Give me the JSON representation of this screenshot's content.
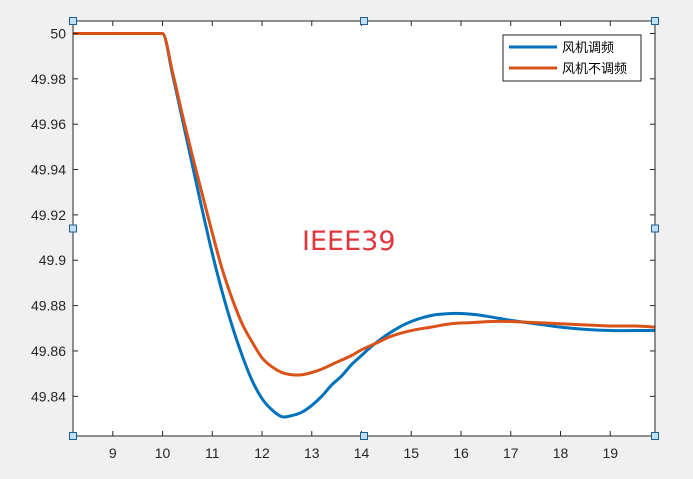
{
  "chart_data": {
    "type": "line",
    "xlim": [
      8.2,
      19.9
    ],
    "ylim": [
      49.8225,
      50.0055
    ],
    "xticks": [
      9,
      10,
      11,
      12,
      13,
      14,
      15,
      16,
      17,
      18,
      19
    ],
    "yticks": [
      49.84,
      49.86,
      49.88,
      49.9,
      49.92,
      49.94,
      49.96,
      49.98,
      50
    ],
    "xtick_labels": [
      "9",
      "10",
      "11",
      "12",
      "13",
      "14",
      "15",
      "16",
      "17",
      "18",
      "19"
    ],
    "ytick_labels": [
      "49.84",
      "49.86",
      "49.88",
      "49.9",
      "49.92",
      "49.94",
      "49.96",
      "49.98",
      "50"
    ],
    "grid": false,
    "legend_position": "top-right",
    "annotation": "IEEE39",
    "series": [
      {
        "name": "风机调频",
        "color": "#0072bd",
        "x": [
          8.2,
          10.0,
          10.2,
          10.4,
          10.6,
          10.8,
          11.0,
          11.2,
          11.4,
          11.6,
          11.8,
          12.0,
          12.2,
          12.4,
          12.6,
          12.8,
          13.0,
          13.2,
          13.4,
          13.6,
          13.8,
          14.0,
          14.2,
          14.5,
          14.8,
          15.0,
          15.2,
          15.5,
          15.8,
          16.0,
          16.3,
          16.6,
          17.0,
          17.5,
          18.0,
          18.5,
          19.0,
          19.5,
          19.9
        ],
        "y": [
          50.0,
          50.0,
          49.982,
          49.962,
          49.942,
          49.922,
          49.903,
          49.886,
          49.871,
          49.858,
          49.847,
          49.839,
          49.834,
          49.831,
          49.8315,
          49.833,
          49.836,
          49.84,
          49.845,
          49.849,
          49.854,
          49.858,
          49.862,
          49.867,
          49.871,
          49.873,
          49.8745,
          49.876,
          49.8765,
          49.8765,
          49.876,
          49.875,
          49.8735,
          49.872,
          49.8705,
          49.8695,
          49.869,
          49.869,
          49.869
        ]
      },
      {
        "name": "风机不调频",
        "color": "#d95319",
        "x": [
          8.2,
          10.0,
          10.2,
          10.4,
          10.6,
          10.8,
          11.0,
          11.2,
          11.4,
          11.6,
          11.8,
          12.0,
          12.2,
          12.4,
          12.6,
          12.8,
          13.0,
          13.2,
          13.5,
          13.8,
          14.0,
          14.3,
          14.6,
          15.0,
          15.4,
          15.8,
          16.2,
          16.6,
          17.0,
          17.5,
          18.0,
          18.5,
          19.0,
          19.5,
          19.9
        ],
        "y": [
          50.0,
          50.0,
          49.983,
          49.964,
          49.946,
          49.929,
          49.912,
          49.896,
          49.883,
          49.872,
          49.864,
          49.857,
          49.853,
          49.8505,
          49.8495,
          49.8495,
          49.8505,
          49.852,
          49.855,
          49.858,
          49.8605,
          49.8635,
          49.8665,
          49.869,
          49.8705,
          49.872,
          49.8725,
          49.873,
          49.873,
          49.8725,
          49.872,
          49.8715,
          49.871,
          49.871,
          49.8705
        ]
      }
    ]
  }
}
